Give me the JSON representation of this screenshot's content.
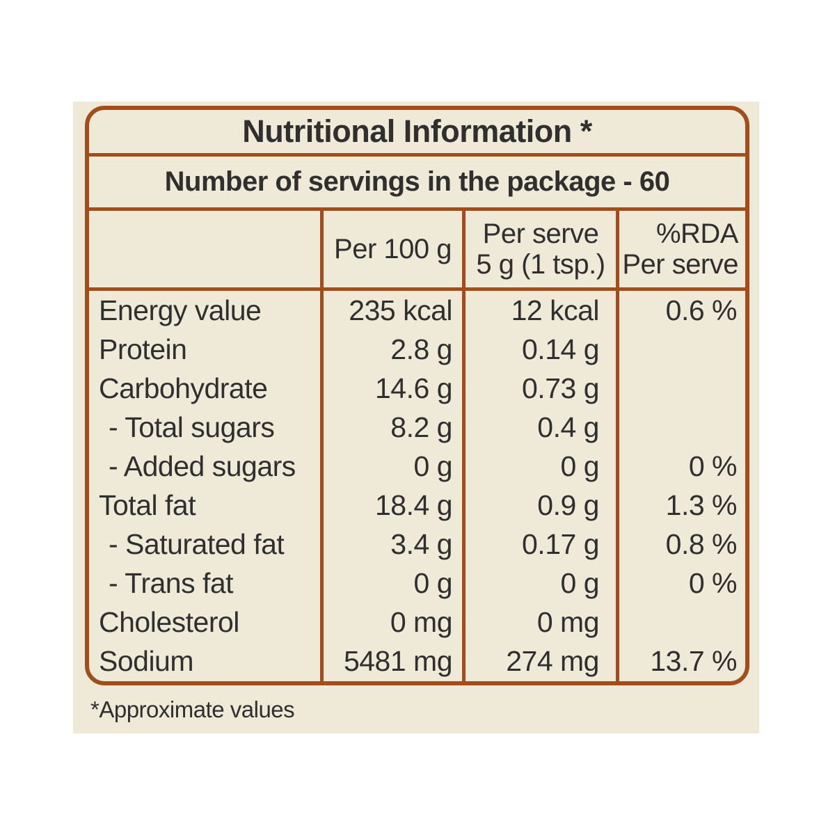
{
  "colors": {
    "page_background": "#ffffff",
    "panel_background": "#efe9d8",
    "border_brown": "#a24e1c",
    "text": "#2f2f2f"
  },
  "table": {
    "title": "Nutritional Information *",
    "servings_note": "Number of servings in the package - 60",
    "columns": {
      "blank": "",
      "per_100g": "Per 100 g",
      "per_serve_line1": "Per serve",
      "per_serve_line2": "5 g (1 tsp.)",
      "rda_line1": "%RDA",
      "rda_line2": "Per serve"
    },
    "rows": [
      {
        "label": "Energy value",
        "per100": "235 kcal",
        "serve": "12 kcal",
        "rda": "0.6 %"
      },
      {
        "label": "Protein",
        "per100": "2.8 g",
        "serve": "0.14 g",
        "rda": ""
      },
      {
        "label": "Carbohydrate",
        "per100": "14.6 g",
        "serve": "0.73 g",
        "rda": ""
      },
      {
        "label": "- Total sugars",
        "per100": "8.2 g",
        "serve": "0.4 g",
        "rda": ""
      },
      {
        "label": "- Added sugars",
        "per100": "0 g",
        "serve": "0 g",
        "rda": "0 %"
      },
      {
        "label": "Total fat",
        "per100": "18.4 g",
        "serve": "0.9 g",
        "rda": "1.3 %"
      },
      {
        "label": "- Saturated fat",
        "per100": "3.4 g",
        "serve": "0.17 g",
        "rda": "0.8 %"
      },
      {
        "label": "- Trans fat",
        "per100": "0 g",
        "serve": "0 g",
        "rda": "0 %"
      },
      {
        "label": "Cholesterol",
        "per100": "0 mg",
        "serve": "0 mg",
        "rda": ""
      },
      {
        "label": "Sodium",
        "per100": "5481 mg",
        "serve": "274 mg",
        "rda": "13.7 %"
      }
    ]
  },
  "footnote": "*Approximate values"
}
